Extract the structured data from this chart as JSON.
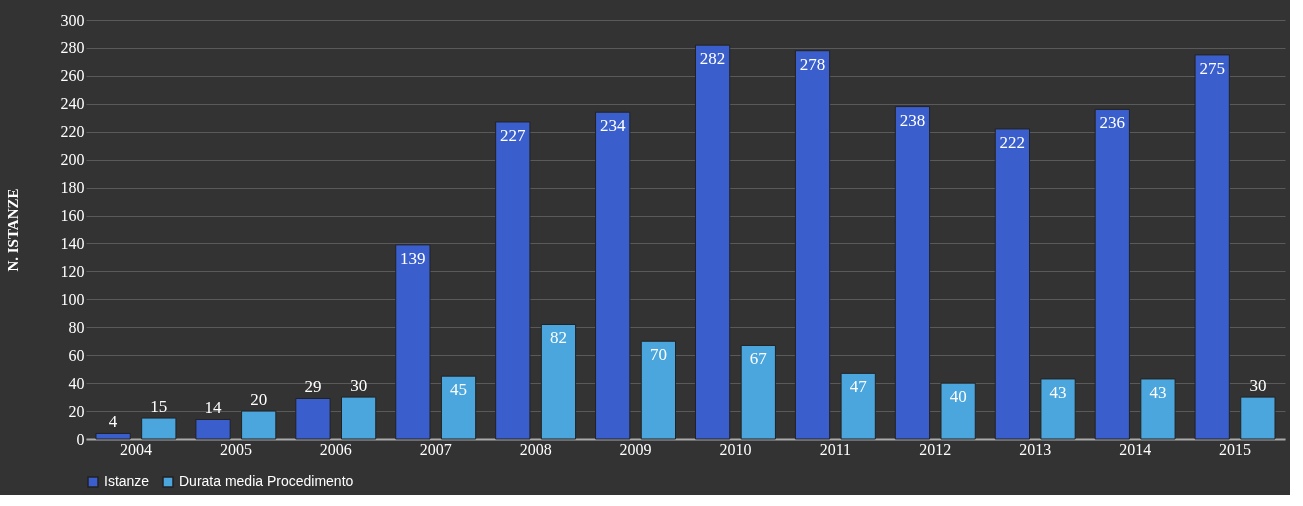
{
  "chart_data": {
    "type": "bar",
    "ylabel": "N. ISTANZE",
    "categories": [
      "2004",
      "2005",
      "2006",
      "2007",
      "2008",
      "2009",
      "2010",
      "2011",
      "2012",
      "2013",
      "2014",
      "2015"
    ],
    "series": [
      {
        "name": "Istanze",
        "color": "#3a5fcd",
        "values": [
          4,
          14,
          29,
          139,
          227,
          234,
          282,
          278,
          238,
          222,
          236,
          275
        ]
      },
      {
        "name": "Durata media Procedimento",
        "color": "#4aa6dc",
        "values": [
          15,
          20,
          30,
          45,
          82,
          70,
          67,
          47,
          40,
          43,
          43,
          30
        ]
      }
    ],
    "ylim": [
      0,
      300
    ],
    "yticks": [
      0,
      20,
      40,
      60,
      80,
      100,
      120,
      140,
      160,
      180,
      200,
      220,
      240,
      260,
      280,
      300
    ],
    "grid": "y",
    "legend": "bottom",
    "data_labels": true
  }
}
